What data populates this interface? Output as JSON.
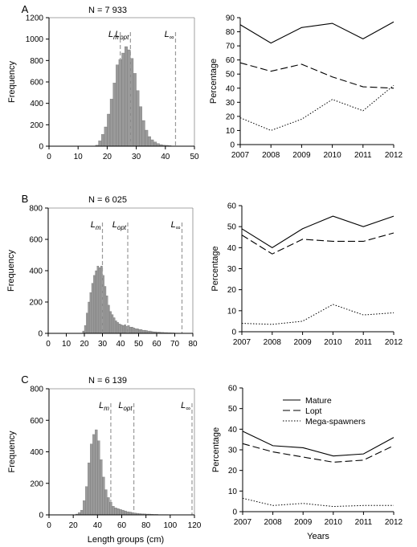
{
  "chart_data": [
    {
      "type": "bar",
      "panel": "A",
      "annotation": "N = 7 933",
      "xlabel": "",
      "ylabel": "Frequency",
      "xlim": [
        0,
        50
      ],
      "ylim": [
        0,
        1200
      ],
      "xticks": [
        0,
        10,
        20,
        30,
        40,
        50
      ],
      "yticks": [
        0,
        200,
        400,
        600,
        800,
        1000,
        1200
      ],
      "bin_width": 1,
      "bin_start": 16,
      "values": [
        10,
        50,
        110,
        180,
        300,
        440,
        590,
        760,
        810,
        870,
        930,
        900,
        820,
        680,
        520,
        370,
        240,
        150,
        90,
        60,
        40,
        25,
        15,
        10,
        8,
        5
      ],
      "reference_lines": [
        {
          "label": "L",
          "sub": "m",
          "x": 24.5
        },
        {
          "label": "L",
          "sub": "opt",
          "x": 28
        },
        {
          "label": "L",
          "sub": "∞",
          "x": 43.5
        }
      ]
    },
    {
      "type": "line",
      "panel": "A",
      "xlabel": "",
      "ylabel": "Percentage",
      "x": [
        2007,
        2008,
        2009,
        2010,
        2011,
        2012
      ],
      "ylim": [
        0,
        90
      ],
      "yticks": [
        0,
        10,
        20,
        30,
        40,
        50,
        60,
        70,
        80,
        90
      ],
      "series": [
        {
          "name": "Mature",
          "style": "solid",
          "values": [
            85,
            72,
            83,
            86,
            75,
            87
          ]
        },
        {
          "name": "Lopt",
          "style": "dashed",
          "values": [
            58,
            52,
            57,
            48,
            41,
            40
          ]
        },
        {
          "name": "Mega-spawners",
          "style": "dotted",
          "values": [
            19,
            10,
            18,
            32,
            24,
            42
          ]
        }
      ]
    },
    {
      "type": "bar",
      "panel": "B",
      "annotation": "N = 6 025",
      "xlabel": "",
      "ylabel": "Frequency",
      "xlim": [
        0,
        80
      ],
      "ylim": [
        0,
        800
      ],
      "xticks": [
        0,
        10,
        20,
        30,
        40,
        50,
        60,
        70,
        80
      ],
      "yticks": [
        0,
        200,
        400,
        600,
        800
      ],
      "bin_width": 1,
      "bin_start": 19,
      "values": [
        15,
        50,
        130,
        200,
        260,
        320,
        370,
        400,
        430,
        420,
        430,
        370,
        300,
        240,
        180,
        140,
        120,
        100,
        80,
        70,
        60,
        55,
        50,
        55,
        45,
        50,
        40,
        40,
        35,
        30,
        30,
        25,
        25,
        20,
        20,
        18,
        15,
        15,
        12,
        10,
        10,
        8,
        8,
        6,
        6,
        5,
        5,
        4,
        4,
        3,
        3,
        2,
        2
      ],
      "reference_lines": [
        {
          "label": "L",
          "sub": "m",
          "x": 30
        },
        {
          "label": "L",
          "sub": "opt",
          "x": 44
        },
        {
          "label": "L",
          "sub": "∞",
          "x": 74
        }
      ]
    },
    {
      "type": "line",
      "panel": "B",
      "xlabel": "",
      "ylabel": "Percentage",
      "x": [
        2007,
        2008,
        2009,
        2010,
        2011,
        2012
      ],
      "ylim": [
        0,
        60
      ],
      "yticks": [
        0,
        10,
        20,
        30,
        40,
        50,
        60
      ],
      "series": [
        {
          "name": "Mature",
          "style": "solid",
          "values": [
            49,
            40,
            49,
            55,
            50,
            55
          ]
        },
        {
          "name": "Lopt",
          "style": "dashed",
          "values": [
            46,
            37,
            44,
            43,
            43,
            47
          ]
        },
        {
          "name": "Mega-spawners",
          "style": "dotted",
          "values": [
            4,
            3.5,
            5,
            13,
            8,
            9
          ]
        }
      ]
    },
    {
      "type": "bar",
      "panel": "C",
      "annotation": "N = 6 139",
      "xlabel": "Length groups (cm)",
      "ylabel": "Frequency",
      "xlim": [
        0,
        120
      ],
      "ylim": [
        0,
        800
      ],
      "xticks": [
        0,
        20,
        40,
        60,
        80,
        100,
        120
      ],
      "yticks": [
        0,
        200,
        400,
        600,
        800
      ],
      "bin_width": 2,
      "bin_start": 22,
      "values": [
        5,
        15,
        30,
        90,
        180,
        330,
        450,
        510,
        540,
        470,
        350,
        240,
        160,
        110,
        80,
        55,
        45,
        40,
        35,
        30,
        25,
        20,
        18,
        15,
        12,
        10,
        8,
        7,
        6,
        5,
        5,
        4,
        3,
        3,
        2,
        2,
        2,
        2,
        1,
        1
      ],
      "reference_lines": [
        {
          "label": "L",
          "sub": "m",
          "x": 51
        },
        {
          "label": "L",
          "sub": "opt",
          "x": 70
        },
        {
          "label": "L",
          "sub": "∞",
          "x": 118
        }
      ]
    },
    {
      "type": "line",
      "panel": "C",
      "xlabel": "Years",
      "ylabel": "Percentage",
      "x": [
        2007,
        2008,
        2009,
        2010,
        2011,
        2012
      ],
      "ylim": [
        0,
        60
      ],
      "yticks": [
        0,
        10,
        20,
        30,
        40,
        50,
        60
      ],
      "legend_position": "top-right",
      "series": [
        {
          "name": "Mature",
          "style": "solid",
          "values": [
            39,
            32,
            31,
            27,
            28,
            36
          ]
        },
        {
          "name": "Lopt",
          "style": "dashed",
          "values": [
            33,
            29,
            26.5,
            24,
            25,
            32
          ]
        },
        {
          "name": "Mega-spawners",
          "style": "dotted",
          "values": [
            6.5,
            3,
            4,
            2.5,
            3,
            3
          ]
        }
      ]
    }
  ]
}
